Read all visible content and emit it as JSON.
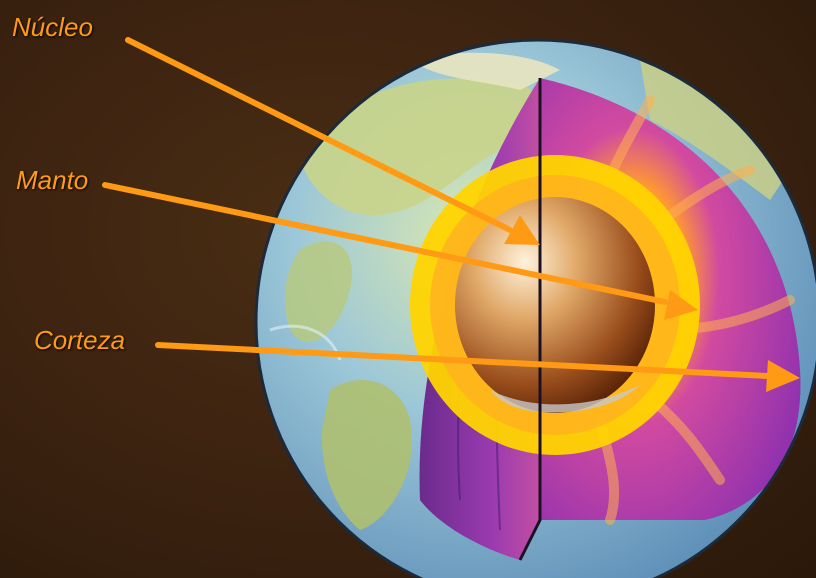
{
  "labels": {
    "core": "Núcleo",
    "mantle": "Manto",
    "crust": "Corteza"
  },
  "colors": {
    "label": "#ff9a14",
    "arrow": "#ff9a14",
    "background": "#3b2210",
    "ocean": "#7fb6e0",
    "mantle": "#a03fb0",
    "molten_layer": "#ffd400",
    "core": "#d08a4a"
  }
}
